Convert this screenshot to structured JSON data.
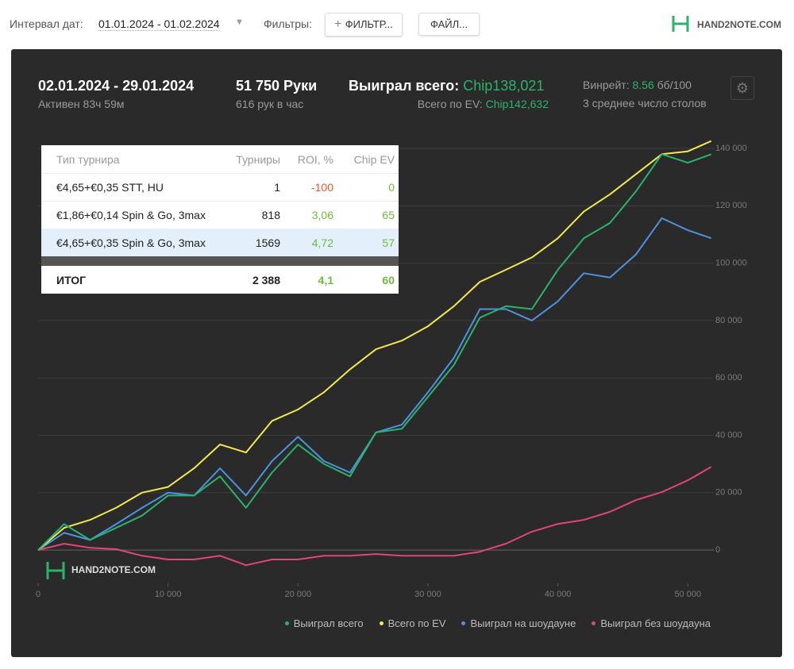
{
  "toolbar": {
    "date_label": "Интервал дат:",
    "date_range": "01.01.2024 - 01.02.2024",
    "filters_label": "Фильтры:",
    "filter_button": "ФИЛЬТР...",
    "file_button": "ФАЙЛ...",
    "logo": "HAND2NOTE.COM"
  },
  "summary": {
    "period": "02.01.2024 - 29.01.2024",
    "active": "Активен 83ч 59м",
    "hands": "51 750 Руки",
    "hands_per_hour": "616 рук в час",
    "won_label": "Выиграл всего:",
    "won_value": "Chip138,021",
    "ev_label": "Всего по EV:",
    "ev_value": "Chip142,632",
    "winrate_label": "Винрейт:",
    "winrate_value": "8.56",
    "winrate_unit": "бб/100",
    "tables": "3 среднее число столов"
  },
  "table": {
    "header": [
      "Тип турнира",
      "Турниры",
      "ROI, %",
      "Chip EV"
    ],
    "rows": [
      [
        "€4,65+€0,35 STT, HU",
        "1",
        "-100",
        "0"
      ],
      [
        "€1,86+€0,14 Spin & Go, 3max",
        "818",
        "3,06",
        "65"
      ],
      [
        "€4,65+€0,35 Spin & Go, 3max",
        "1569",
        "4,72",
        "57"
      ]
    ],
    "total": [
      "ИТОГ",
      "2 388",
      "4,1",
      "60"
    ]
  },
  "chart_data": {
    "type": "line",
    "watermark": "HAND2NOTE.COM",
    "x": [
      0,
      2000,
      4000,
      6000,
      8000,
      10000,
      12000,
      14000,
      16000,
      18000,
      20000,
      22000,
      24000,
      26000,
      28000,
      30000,
      32000,
      34000,
      36000,
      38000,
      40000,
      42000,
      44000,
      46000,
      48000,
      50000,
      51800
    ],
    "series": [
      {
        "name": "Выиграл всего",
        "color": "#2bb36b",
        "values": [
          0,
          9000,
          3500,
          7700,
          12000,
          19000,
          19000,
          25700,
          14700,
          27000,
          36800,
          30000,
          25700,
          41000,
          42300,
          53400,
          64500,
          81000,
          85000,
          84000,
          97700,
          108700,
          114000,
          125000,
          138000,
          135000,
          138000
        ]
      },
      {
        "name": "Всего по EV",
        "color": "#f1e94f",
        "values": [
          0,
          7700,
          10500,
          14700,
          20000,
          22000,
          28500,
          36800,
          34000,
          45000,
          49000,
          55000,
          63000,
          70000,
          73000,
          78000,
          85000,
          93500,
          97700,
          102000,
          108700,
          118000,
          124000,
          131000,
          138000,
          139000,
          142600
        ]
      },
      {
        "name": "Выиграл на шоудауне",
        "color": "#4b93e0",
        "values": [
          0,
          6000,
          3500,
          9000,
          14700,
          20000,
          19000,
          28500,
          19000,
          31000,
          39500,
          31000,
          27000,
          41000,
          43700,
          55000,
          67000,
          84000,
          84000,
          80000,
          86700,
          96500,
          95000,
          103000,
          115700,
          111500,
          108700
        ]
      },
      {
        "name": "Выиграл без шоудауна",
        "color": "#e0457b",
        "values": [
          0,
          2200,
          800,
          300,
          -2000,
          -3300,
          -3300,
          -2000,
          -5300,
          -3300,
          -3300,
          -2000,
          -2000,
          -1400,
          -2000,
          -2000,
          -2000,
          -600,
          2200,
          6400,
          9100,
          10500,
          13300,
          17400,
          20200,
          24300,
          29000
        ]
      }
    ],
    "xlim": [
      0,
      52000
    ],
    "ylim": [
      -11600,
      146100
    ],
    "xticks": [
      0,
      {
        "value": 10000,
        "label": "10 000"
      },
      {
        "value": 20000,
        "label": "20 000"
      },
      {
        "value": 30000,
        "label": "30 000"
      },
      {
        "value": 40000,
        "label": "40 000"
      },
      {
        "value": 50000,
        "label": "50 000"
      }
    ],
    "yticks": [
      0,
      {
        "value": 20000,
        "label": "20 000"
      },
      {
        "value": 40000,
        "label": "40 000"
      },
      {
        "value": 60000,
        "label": "60 000"
      },
      {
        "value": 80000,
        "label": "80 000"
      },
      {
        "value": 100000,
        "label": "100 000"
      },
      {
        "value": 120000,
        "label": "120 000"
      },
      {
        "value": 140000,
        "label": "140 000"
      }
    ],
    "grid": true
  }
}
